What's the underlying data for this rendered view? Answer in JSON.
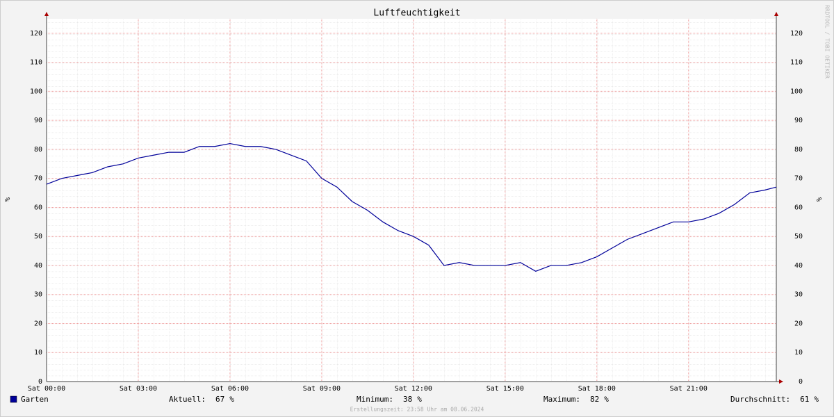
{
  "chart_data": {
    "type": "line",
    "title": "Luftfeuchtigkeit",
    "y_label": "%",
    "watermark": "RRDTOOL / TOBI OETIKER",
    "x": [
      0,
      0.5,
      1,
      1.5,
      2,
      2.5,
      3,
      3.5,
      4,
      4.5,
      5,
      5.5,
      6,
      6.5,
      7,
      7.5,
      8,
      8.5,
      9,
      9.5,
      10,
      10.5,
      11,
      11.5,
      12,
      12.5,
      13,
      13.5,
      14,
      14.5,
      15,
      15.5,
      16,
      16.5,
      17,
      17.5,
      18,
      18.5,
      19,
      19.5,
      20,
      20.5,
      21,
      21.5,
      22,
      22.5,
      23,
      23.5,
      23.87
    ],
    "series": [
      {
        "name": "Garten",
        "color": "#000099",
        "values": [
          68,
          70,
          71,
          72,
          74,
          75,
          77,
          78,
          79,
          79,
          81,
          81,
          82,
          81,
          81,
          80,
          78,
          76,
          70,
          67,
          62,
          59,
          55,
          52,
          50,
          47,
          40,
          41,
          40,
          40,
          40,
          41,
          38,
          40,
          40,
          41,
          43,
          46,
          49,
          51,
          53,
          55,
          55,
          56,
          58,
          61,
          65,
          66,
          67
        ]
      }
    ],
    "xlim": [
      0,
      23.87
    ],
    "xticks": [
      {
        "value": 0,
        "label": "Sat 00:00"
      },
      {
        "value": 3,
        "label": "Sat 03:00"
      },
      {
        "value": 6,
        "label": "Sat 06:00"
      },
      {
        "value": 9,
        "label": "Sat 09:00"
      },
      {
        "value": 12,
        "label": "Sat 12:00"
      },
      {
        "value": 15,
        "label": "Sat 15:00"
      },
      {
        "value": 18,
        "label": "Sat 18:00"
      },
      {
        "value": 21,
        "label": "Sat 21:00"
      }
    ],
    "ylim": [
      0,
      125
    ],
    "yticks": [
      0,
      10,
      20,
      30,
      40,
      50,
      60,
      70,
      80,
      90,
      100,
      110,
      120
    ],
    "grid": true,
    "stats": [
      {
        "label": "Aktuell:",
        "value": 67,
        "unit": "%"
      },
      {
        "label": "Minimum:",
        "value": 38,
        "unit": "%"
      },
      {
        "label": "Maximum:",
        "value": 82,
        "unit": "%"
      },
      {
        "label": "Durchschnitt:",
        "value": 61,
        "unit": "%"
      }
    ],
    "footer": "Erstellungszeit: 23:58 Uhr am 08.06.2024"
  }
}
